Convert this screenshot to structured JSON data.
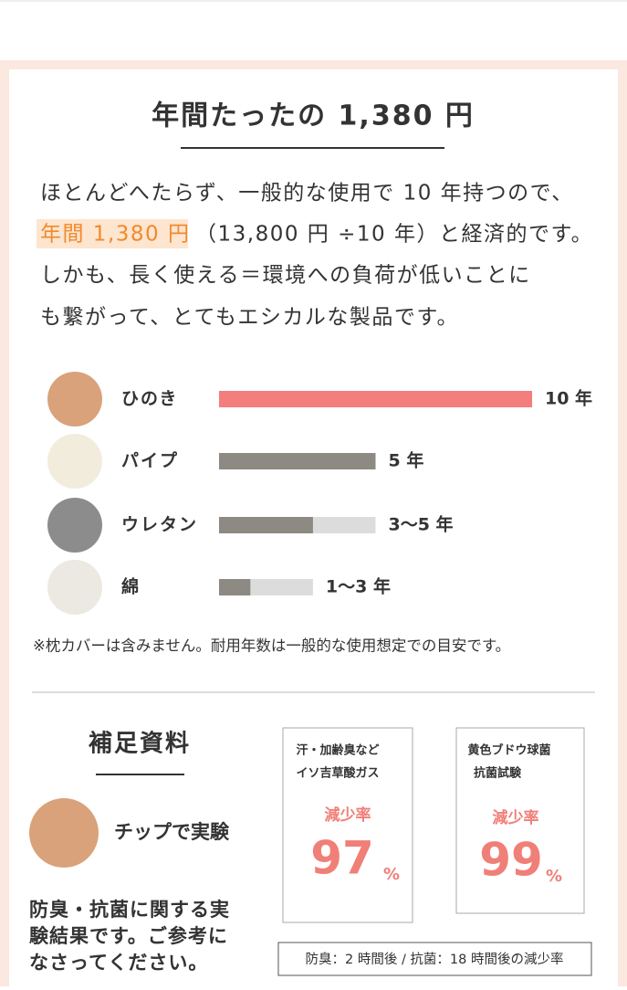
{
  "header": {
    "title": "年間たったの 1,380 円"
  },
  "intro": {
    "segments": [
      "ほとんどへたらず、一般的な使用で 10 年持つので、",
      "年間 1,380 円",
      "（13,800 円 ÷10 年）と経済的です。",
      "しかも、長く使える＝環境への負荷が低いことに",
      "も繋がって、とてもエシカルな製品です。"
    ]
  },
  "chart_data": {
    "type": "range-bar",
    "categories": [
      "ひのき",
      "パイプ",
      "ウレタン",
      "綿"
    ],
    "low": [
      10,
      5,
      3,
      1
    ],
    "high": [
      10,
      5,
      5,
      3
    ],
    "value_labels": [
      "10 年",
      "5 年",
      "3〜5 年",
      "1〜3 年"
    ],
    "colors": [
      "#f47d7d",
      "#8d8983",
      "#8d8983",
      "#8d8983"
    ],
    "range_color": "#dcdcdc",
    "xlim": [
      0,
      10
    ]
  },
  "note": "※枕カバーは含みません。耐用年数は一般的な使用想定での目安です。",
  "supplement": {
    "title": "補足資料",
    "subtitle": "チップで実験",
    "body": [
      "防臭・抗菌に関する実",
      "験結果です。ご参考に",
      "なさってください。"
    ],
    "documents": [
      {
        "heading": "汗・加齢臭など",
        "subheading": "イソ吉草酸ガス",
        "label": "減少率",
        "number": "97",
        "unit": "%"
      },
      {
        "heading": "黄色ブドウ球菌",
        "subheading": "抗菌試験",
        "label": "減少率",
        "number": "99",
        "unit": "%"
      }
    ],
    "caption": "防臭：2 時間後 / 抗菌：18 時間後の減少率"
  }
}
